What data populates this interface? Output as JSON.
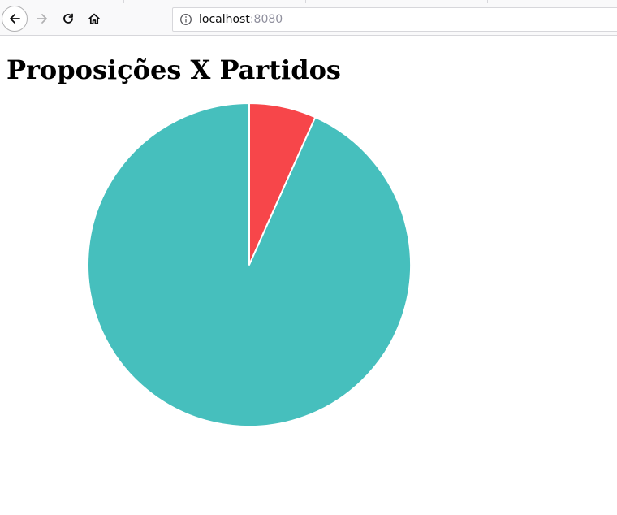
{
  "browser": {
    "url_host": "localhost",
    "url_port": ":8080",
    "icons": {
      "back": "back-arrow-icon",
      "forward": "forward-arrow-icon",
      "reload": "reload-icon",
      "home": "home-icon",
      "info": "info-icon"
    }
  },
  "page": {
    "title": "Proposições X Partidos"
  },
  "chart_data": {
    "type": "pie",
    "title": "",
    "start_angle_deg": 0,
    "direction": "clockwise",
    "slices": [
      {
        "value": 6.7,
        "color": "#f7464a"
      },
      {
        "value": 93.3,
        "color": "#46bfbd"
      }
    ],
    "slice_border_color": "#ffffff"
  }
}
